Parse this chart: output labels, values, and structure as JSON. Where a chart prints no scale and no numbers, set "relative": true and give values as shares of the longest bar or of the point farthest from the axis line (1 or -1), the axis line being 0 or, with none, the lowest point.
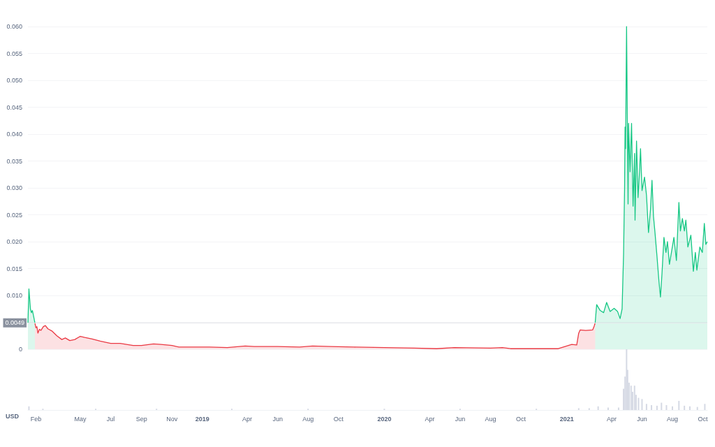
{
  "chart_data": [
    {
      "type": "area",
      "x": [
        "2018-01-16",
        "2018-01-18",
        "2018-01-21",
        "2018-01-23",
        "2018-01-25",
        "2018-01-27",
        "2018-01-30",
        "2018-02-01",
        "2018-02-03",
        "2018-02-05",
        "2018-02-08",
        "2018-02-11",
        "2018-02-16",
        "2018-02-20",
        "2018-02-25",
        "2018-03-05",
        "2018-03-15",
        "2018-03-25",
        "2018-04-01",
        "2018-04-10",
        "2018-04-20",
        "2018-05-01",
        "2018-05-10",
        "2018-05-25",
        "2018-06-10",
        "2018-07-01",
        "2018-07-20",
        "2018-08-15",
        "2018-09-01",
        "2018-09-25",
        "2018-10-10",
        "2018-11-01",
        "2018-11-15",
        "2018-12-15",
        "2019-01-15",
        "2019-02-20",
        "2019-03-28",
        "2019-04-15",
        "2019-06-01",
        "2019-07-15",
        "2019-08-10",
        "2019-09-15",
        "2019-11-01",
        "2020-01-01",
        "2020-03-01",
        "2020-04-15",
        "2020-05-20",
        "2020-08-01",
        "2020-08-25",
        "2020-09-10",
        "2020-12-15",
        "2021-01-11",
        "2021-01-21",
        "2021-01-25",
        "2021-01-28",
        "2021-02-08",
        "2021-02-22",
        "2021-02-25",
        "2021-02-27",
        "2021-03-02",
        "2021-03-09",
        "2021-03-16",
        "2021-03-22",
        "2021-03-29",
        "2021-04-06",
        "2021-04-13",
        "2021-04-18",
        "2021-04-22",
        "2021-04-25",
        "2021-04-27",
        "2021-04-28",
        "2021-04-29",
        "2021-05-01",
        "2021-05-04",
        "2021-05-05",
        "2021-05-08",
        "2021-05-11",
        "2021-05-14",
        "2021-05-17",
        "2021-05-18",
        "2021-05-21",
        "2021-05-24",
        "2021-05-27",
        "2021-05-29",
        "2021-06-01",
        "2021-06-06",
        "2021-06-10",
        "2021-06-14",
        "2021-06-18",
        "2021-06-21",
        "2021-06-24",
        "2021-06-27",
        "2021-07-01",
        "2021-07-05",
        "2021-07-08",
        "2021-07-11",
        "2021-07-15",
        "2021-07-19",
        "2021-07-22",
        "2021-07-26",
        "2021-07-30",
        "2021-08-04",
        "2021-08-09",
        "2021-08-14",
        "2021-08-17",
        "2021-08-21",
        "2021-08-25",
        "2021-08-28",
        "2021-09-01",
        "2021-09-07",
        "2021-09-12",
        "2021-09-16",
        "2021-09-19",
        "2021-09-25",
        "2021-09-30",
        "2021-10-04",
        "2021-10-07",
        "2021-10-10"
      ],
      "series": [
        {
          "color": "#16c784",
          "values": [
            0.0049,
            0.0112,
            0.0075,
            0.0068,
            0.0072,
            0.0063,
            0.0049,
            null,
            null,
            null,
            null,
            null,
            null,
            null,
            null,
            null,
            null,
            null,
            null,
            null,
            null,
            null,
            null,
            null,
            null,
            null,
            null,
            null,
            null,
            null,
            null,
            null,
            null,
            null,
            null,
            null,
            null,
            null,
            null,
            null,
            null,
            null,
            null,
            null,
            null,
            null,
            null,
            null,
            null,
            null,
            null,
            null,
            null,
            null,
            null,
            null,
            null,
            null,
            0.0049,
            0.0083,
            0.0072,
            0.0068,
            0.0087,
            0.007,
            0.0076,
            0.007,
            0.0057,
            0.0075,
            0.0178,
            0.03,
            0.0413,
            0.0373,
            0.06,
            0.027,
            0.042,
            0.033,
            0.042,
            0.0266,
            0.0364,
            0.024,
            0.0387,
            0.0282,
            0.033,
            0.0373,
            0.0295,
            0.032,
            0.0286,
            0.0217,
            0.026,
            0.0314,
            0.0247,
            0.0217,
            0.0173,
            0.0126,
            0.0097,
            0.014,
            0.0208,
            0.018,
            0.02,
            0.0158,
            0.018,
            0.0208,
            0.0165,
            0.0273,
            0.022,
            0.0243,
            0.022,
            0.024,
            0.019,
            0.0212,
            0.0145,
            0.018,
            0.0147,
            0.019,
            0.018,
            0.0234,
            0.0195,
            0.02
          ]
        },
        {
          "color": "#ea3943",
          "values": [
            null,
            null,
            null,
            null,
            null,
            null,
            0.0049,
            0.004,
            0.0042,
            0.003,
            0.0037,
            0.0035,
            0.0042,
            0.0044,
            0.0038,
            0.0034,
            0.0025,
            0.0018,
            0.0021,
            0.0016,
            0.0018,
            0.0024,
            0.0022,
            0.0019,
            0.0015,
            0.0011,
            0.0011,
            0.0007,
            0.0007,
            0.001,
            0.0009,
            0.0007,
            0.0004,
            0.0004,
            0.0004,
            0.0003,
            0.0006,
            0.0005,
            0.0005,
            0.0004,
            0.0006,
            0.0005,
            0.0004,
            0.0003,
            0.0002,
            0.0001,
            0.0003,
            0.0002,
            0.0003,
            0.0001,
            0.0001,
            0.0009,
            0.0008,
            0.003,
            0.0036,
            0.0035,
            0.0036,
            0.0043,
            0.0049,
            null,
            null,
            null,
            null,
            null,
            null,
            null,
            null,
            null,
            null,
            null,
            null,
            null,
            null,
            null,
            null,
            null,
            null,
            null,
            null,
            null,
            null,
            null,
            null,
            null,
            null,
            null,
            null,
            null,
            null,
            null,
            null,
            null,
            null,
            null,
            null,
            null,
            null,
            null,
            null,
            null,
            null,
            null,
            null,
            null,
            null,
            null,
            null,
            null,
            null,
            null,
            null,
            null,
            null,
            null,
            null,
            null,
            null,
            null
          ]
        }
      ],
      "xlim": [
        "2018-01-16",
        "2021-10-10"
      ],
      "ylim": [
        0,
        0.06
      ],
      "yticks": [
        {
          "value": 0,
          "label": "0"
        },
        {
          "value": 0.005,
          "label": null
        },
        {
          "value": 0.01,
          "label": "0.010"
        },
        {
          "value": 0.015,
          "label": "0.015"
        },
        {
          "value": 0.02,
          "label": "0.020"
        },
        {
          "value": 0.025,
          "label": "0.025"
        },
        {
          "value": 0.03,
          "label": "0.030"
        },
        {
          "value": 0.035,
          "label": "0.035"
        },
        {
          "value": 0.04,
          "label": "0.040"
        },
        {
          "value": 0.045,
          "label": "0.045"
        },
        {
          "value": 0.05,
          "label": "0.050"
        },
        {
          "value": 0.055,
          "label": "0.055"
        },
        {
          "value": 0.06,
          "label": "0.060"
        }
      ],
      "ref_lines": [
        {
          "axis": "y",
          "value": 0.0049,
          "label": "0.0049",
          "color": "#e6e8ec"
        }
      ],
      "grid": "y",
      "tick_labels": "y"
    },
    {
      "type": "bar",
      "relative": true,
      "color": "#d5d9e4",
      "x": [
        "2018-01-18",
        "2018-02-15",
        "2018-06-01",
        "2018-10-01",
        "2019-03-01",
        "2019-08-01",
        "2020-01-01",
        "2020-06-01",
        "2020-11-01",
        "2021-01-25",
        "2021-02-15",
        "2021-03-05",
        "2021-03-25",
        "2021-04-15",
        "2021-04-25",
        "2021-04-28",
        "2021-05-01",
        "2021-05-03",
        "2021-05-06",
        "2021-05-10",
        "2021-05-13",
        "2021-05-17",
        "2021-05-20",
        "2021-05-25",
        "2021-06-01",
        "2021-06-10",
        "2021-06-20",
        "2021-07-01",
        "2021-07-10",
        "2021-07-20",
        "2021-08-01",
        "2021-08-14",
        "2021-08-25",
        "2021-09-05",
        "2021-09-20",
        "2021-10-05"
      ],
      "values": [
        0.06,
        0.02,
        0.02,
        0.02,
        0.02,
        0.02,
        0.02,
        0.02,
        0.02,
        0.03,
        0.03,
        0.06,
        0.04,
        0.04,
        0.35,
        0.55,
        1,
        0.66,
        0.45,
        0.4,
        0.3,
        0.4,
        0.25,
        0.2,
        0.18,
        0.1,
        0.08,
        0.07,
        0.12,
        0.08,
        0.06,
        0.15,
        0.07,
        0.06,
        0.05,
        0.1
      ],
      "xlim": [
        "2018-01-16",
        "2021-10-10"
      ],
      "xticks": [
        {
          "value": "2018-02-01",
          "label": "Feb"
        },
        {
          "value": "2018-05-01",
          "label": "May"
        },
        {
          "value": "2018-07-01",
          "label": "Jul"
        },
        {
          "value": "2018-09-01",
          "label": "Sep"
        },
        {
          "value": "2018-11-01",
          "label": "Nov"
        },
        {
          "value": "2019-01-01",
          "label": "2019"
        },
        {
          "value": "2019-04-01",
          "label": "Apr"
        },
        {
          "value": "2019-06-01",
          "label": "Jun"
        },
        {
          "value": "2019-08-01",
          "label": "Aug"
        },
        {
          "value": "2019-10-01",
          "label": "Oct"
        },
        {
          "value": "2020-01-01",
          "label": "2020"
        },
        {
          "value": "2020-04-01",
          "label": "Apr"
        },
        {
          "value": "2020-06-01",
          "label": "Jun"
        },
        {
          "value": "2020-08-01",
          "label": "Aug"
        },
        {
          "value": "2020-10-01",
          "label": "Oct"
        },
        {
          "value": "2021-01-01",
          "label": "2021"
        },
        {
          "value": "2021-04-01",
          "label": "Apr"
        },
        {
          "value": "2021-06-01",
          "label": "Jun"
        },
        {
          "value": "2021-08-01",
          "label": "Aug"
        },
        {
          "value": "2021-10-01",
          "label": "Oct"
        }
      ],
      "annotations": [
        "USD"
      ],
      "tick_labels": "x"
    }
  ]
}
